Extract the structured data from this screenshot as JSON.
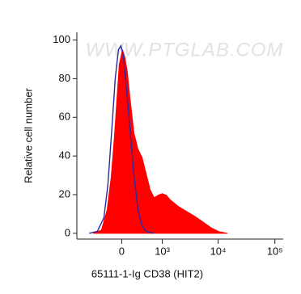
{
  "chart_data": {
    "type": "histogram-overlay",
    "watermark": "WWW.PTGLAB.COM",
    "x_label": "65111-1-Ig CD38 (HIT2)",
    "y_label": "Relative cell number",
    "xscale": "biexponential",
    "xlim": [
      -1200,
      140000
    ],
    "xticks": [
      0,
      {
        "value": 1000,
        "label": "10³"
      },
      {
        "value": 10000,
        "label": "10⁴"
      },
      {
        "value": 100000,
        "label": "10⁵"
      }
    ],
    "ylim": [
      -3,
      104
    ],
    "yticks": [
      0,
      20,
      40,
      60,
      80,
      100
    ],
    "series": [
      {
        "kind": "area",
        "color": "#ff0000",
        "x": [
          -568,
          -367,
          -251,
          -176,
          -120,
          -66,
          -40,
          13,
          53,
          93,
          134,
          206,
          283,
          368,
          462,
          569,
          692,
          834,
          996,
          1186,
          1413,
          1980,
          2770,
          3850,
          5360,
          7470,
          10400,
          14400
        ],
        "values": [
          0,
          1.7,
          12.1,
          28.9,
          49.8,
          74.9,
          87.4,
          95,
          90.8,
          83.3,
          70.7,
          51.9,
          43.5,
          39.3,
          31,
          22.6,
          18.4,
          19.7,
          20.5,
          19.7,
          17.2,
          13.8,
          11.3,
          8.8,
          5.9,
          2.9,
          0.8,
          0
        ]
      },
      {
        "kind": "line",
        "color": "#2a2aa0",
        "x": [
          -692,
          -462,
          -315,
          -236,
          -162,
          -106,
          -53,
          -13,
          26,
          79,
          134,
          206,
          283,
          368,
          462,
          692
        ],
        "values": [
          0,
          1,
          8,
          25,
          55,
          80,
          95,
          97,
          92,
          75,
          55,
          30,
          12,
          4,
          1,
          0
        ]
      }
    ]
  }
}
